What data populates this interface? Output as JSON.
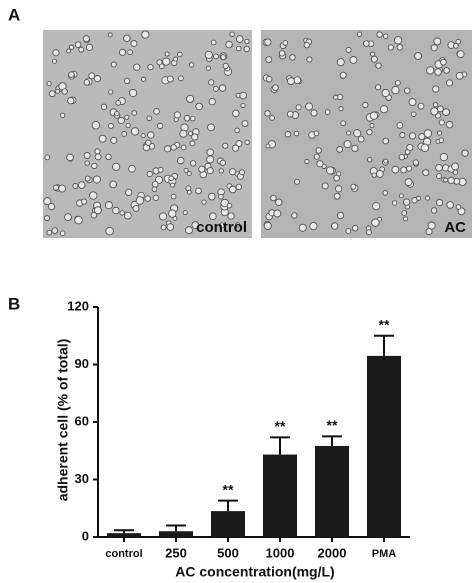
{
  "panel_a": {
    "label": "A",
    "images": [
      {
        "caption": "control"
      },
      {
        "caption": "AC"
      }
    ]
  },
  "panel_b_label": "B",
  "chart_data": {
    "type": "bar",
    "ylabel": "adherent cell (% of total)",
    "xlabel": "AC concentration(mg/L)",
    "categories": [
      "control",
      "250",
      "500",
      "1000",
      "2000",
      "PMA"
    ],
    "values": [
      2,
      3,
      13.5,
      43,
      47.5,
      94.5
    ],
    "errors": [
      1.5,
      3,
      5.5,
      9,
      5,
      10.5
    ],
    "significance": [
      null,
      null,
      "**",
      "**",
      "**",
      "**"
    ],
    "color": "#1a1a1a",
    "ylim": [
      0,
      120
    ],
    "yticks": [
      0,
      30,
      60,
      90,
      120
    ]
  }
}
